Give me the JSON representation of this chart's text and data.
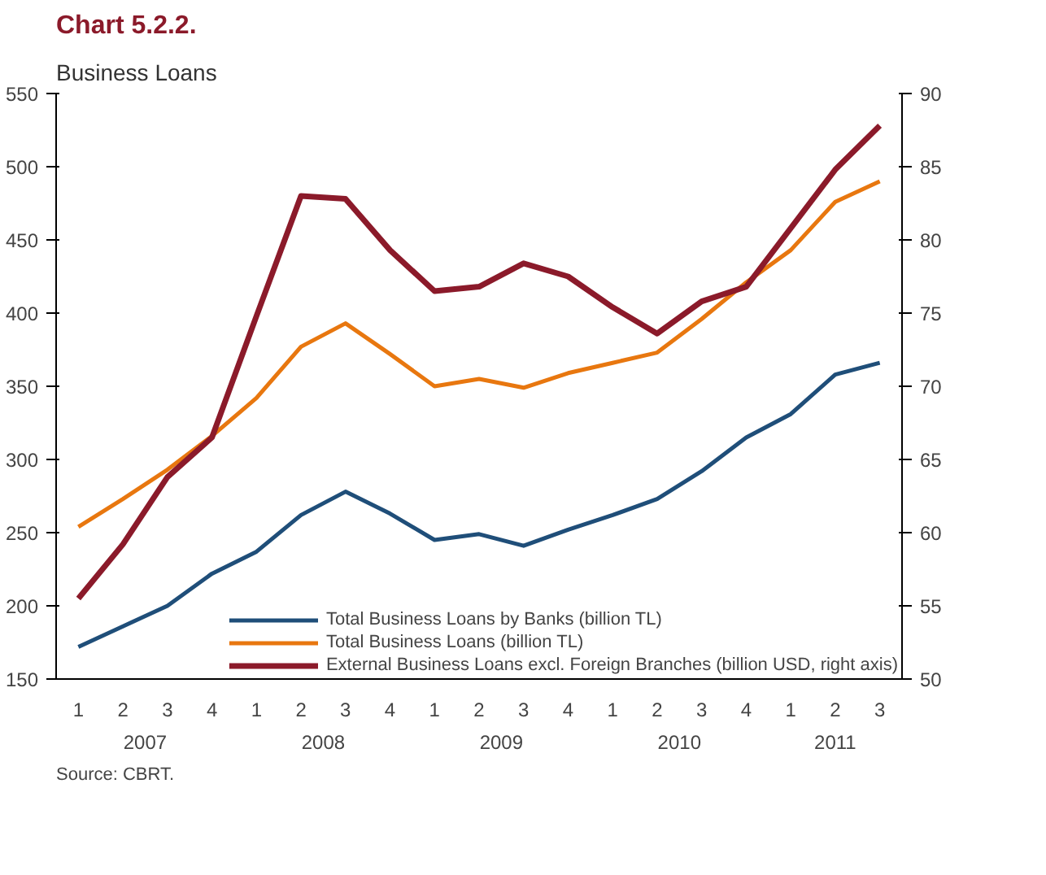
{
  "chart_data": {
    "type": "line",
    "title": "Chart 5.2.2.",
    "subtitle": "Business Loans",
    "categories": [
      "1",
      "2",
      "3",
      "4",
      "1",
      "2",
      "3",
      "4",
      "1",
      "2",
      "3",
      "4",
      "1",
      "2",
      "3",
      "4",
      "1",
      "2",
      "3"
    ],
    "series": [
      {
        "name": "Total Business Loans by Banks (billion TL)",
        "color": "#1f4e79",
        "values": [
          172,
          186,
          200,
          222,
          237,
          262,
          278,
          263,
          245,
          249,
          241,
          252,
          262,
          273,
          292,
          315,
          331,
          358,
          366
        ]
      },
      {
        "name": "Total Business Loans (billion TL)",
        "color": "#e8770f",
        "values": [
          254,
          273,
          293,
          316,
          342,
          377,
          393,
          372,
          350,
          355,
          349,
          359,
          366,
          373,
          396,
          421,
          443,
          476,
          490
        ]
      },
      {
        "name": "External Business Loans excl. Foreign Branches (billion USD, right axis)",
        "color": "#8b1a2a",
        "axis": "y2",
        "values": [
          55.5,
          59.2,
          63.8,
          66.5,
          74.8,
          83,
          82.8,
          79.3,
          76.5,
          76.8,
          78.4,
          77.5,
          75.4,
          73.6,
          75.8,
          76.8,
          80.8,
          84.8,
          87.8
        ]
      }
    ],
    "ylim": [
      150,
      550
    ],
    "yticks": [
      150,
      200,
      250,
      300,
      350,
      400,
      450,
      500,
      550
    ],
    "y2lim": [
      50,
      90
    ],
    "y2ticks": [
      50,
      55,
      60,
      65,
      70,
      75,
      80,
      85,
      90
    ],
    "grid": false,
    "legend": "bottom right",
    "annotations": [
      "2007",
      "2008",
      "2009",
      "2010",
      "2011",
      "Source: CBRT."
    ]
  }
}
